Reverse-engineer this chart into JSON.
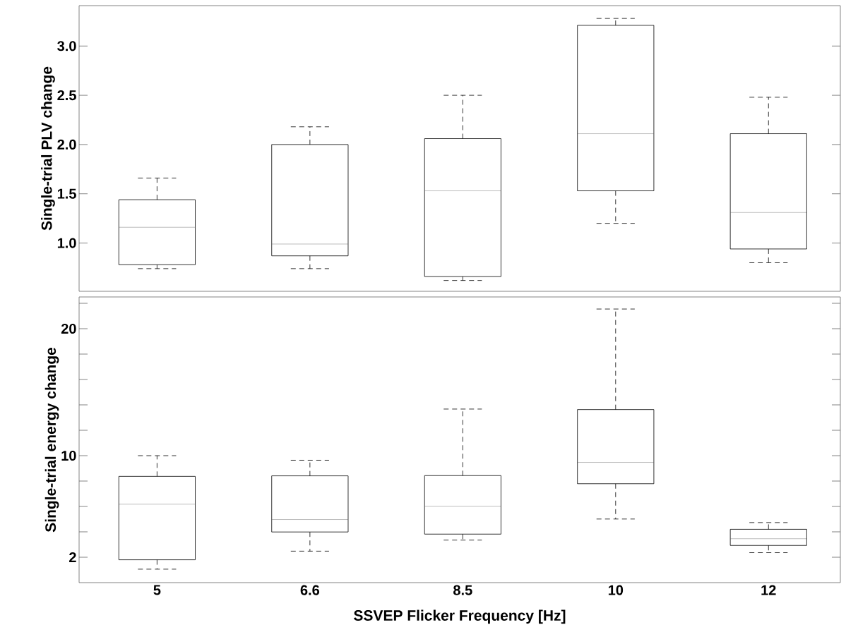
{
  "chart_data": [
    {
      "type": "box",
      "ylabel": "Single-trial PLV change",
      "categories": [
        "5",
        "6.6",
        "8.5",
        "10",
        "12"
      ],
      "tick_labels": "y",
      "boxes": [
        {
          "low": 0.74,
          "q1": 0.78,
          "median": 1.16,
          "q3": 1.44,
          "high": 1.66
        },
        {
          "low": 0.74,
          "q1": 0.87,
          "median": 0.99,
          "q3": 2.0,
          "high": 2.18
        },
        {
          "low": 0.62,
          "q1": 0.66,
          "median": 1.53,
          "q3": 2.06,
          "high": 2.5
        },
        {
          "low": 1.2,
          "q1": 1.53,
          "median": 2.11,
          "q3": 3.21,
          "high": 3.28
        },
        {
          "low": 0.8,
          "q1": 0.94,
          "median": 1.31,
          "q3": 2.11,
          "high": 2.48
        }
      ],
      "ylim": [
        0.51,
        3.41
      ],
      "yticks": [
        {
          "value": 1,
          "label": "1.0"
        },
        1.5,
        {
          "value": 2,
          "label": "2.0"
        },
        2.5,
        {
          "value": 3,
          "label": "3.0"
        }
      ]
    },
    {
      "type": "box",
      "ylabel": "Single-trial energy change",
      "xlabel": "SSVEP Flicker Frequency [Hz]",
      "categories": [
        "5",
        "6.6",
        "8.5",
        "10",
        "12"
      ],
      "boxes": [
        {
          "low": 1.06,
          "q1": 1.8,
          "median": 6.18,
          "q3": 8.37,
          "high": 10.0
        },
        {
          "low": 2.48,
          "q1": 3.99,
          "median": 4.97,
          "q3": 8.41,
          "high": 9.64
        },
        {
          "low": 3.35,
          "q1": 3.82,
          "median": 6.01,
          "q3": 8.43,
          "high": 13.67
        },
        {
          "low": 5.01,
          "q1": 7.79,
          "median": 9.47,
          "q3": 13.63,
          "high": 21.55
        },
        {
          "low": 2.36,
          "q1": 2.93,
          "median": 3.46,
          "q3": 4.2,
          "high": 4.73
        }
      ],
      "ylim": [
        0,
        22.5
      ],
      "yticks": [
        2,
        {
          "value": 4,
          "label": null
        },
        {
          "value": 6,
          "label": null
        },
        {
          "value": 8,
          "label": null
        },
        10,
        {
          "value": 12,
          "label": null
        },
        {
          "value": 14,
          "label": null
        },
        {
          "value": 16,
          "label": null
        },
        {
          "value": 18,
          "label": null
        },
        20,
        {
          "value": 22,
          "label": null
        }
      ]
    }
  ]
}
